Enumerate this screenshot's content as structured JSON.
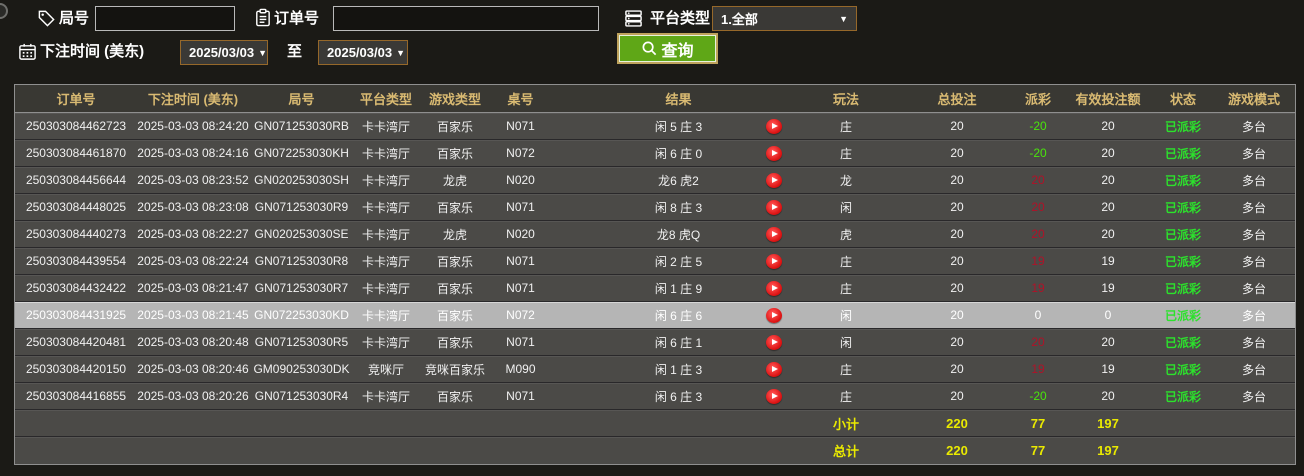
{
  "filters": {
    "round_label": "局号",
    "round_value": "",
    "order_label": "订单号",
    "order_value": "",
    "platform_label": "平台类型",
    "platform_value": "1.全部",
    "bet_time_label": "下注时间 (美东)",
    "date_from": "2025/03/03",
    "to_label": "至",
    "date_to": "2025/03/03",
    "search_label": "查询"
  },
  "icons": {
    "round": "tag-icon",
    "order": "clipboard-icon",
    "platform": "server-list-icon",
    "bet_time": "calendar-icon",
    "search": "magnifier-icon",
    "play": "play-circle-icon",
    "dropdown": "▼"
  },
  "colors": {
    "page_bg": "#1b1a16",
    "row_bg": "#4b4a47",
    "header_bg": "#393833",
    "header_text": "#d9ba72",
    "selected_row_bg": "#b5b5b5",
    "payout_negative_green": "#49e40c",
    "payout_positive_red": "#b01228",
    "status_paid_green": "#2ce22c",
    "totals_yellow": "#eaea00",
    "search_button_green": "#5fa717",
    "select_border_brown": "#96682a"
  },
  "table": {
    "columns": [
      "订单号",
      "下注时间 (美东)",
      "局号",
      "平台类型",
      "游戏类型",
      "桌号",
      "结果",
      "",
      "玩法",
      "总投注",
      "派彩",
      "有效投注额",
      "状态",
      "游戏模式"
    ],
    "rows": [
      {
        "order": "250303084462723",
        "time": "2025-03-03 08:24:20",
        "round": "GN071253030RB",
        "platform": "卡卡湾厅",
        "game": "百家乐",
        "table": "N071",
        "result": "闲 5 庄 3",
        "playtype": "庄",
        "bet": "20",
        "payout": "-20",
        "payout_color": "green",
        "valid": "20",
        "status": "已派彩",
        "mode": "多台",
        "selected": false
      },
      {
        "order": "250303084461870",
        "time": "2025-03-03 08:24:16",
        "round": "GN072253030KH",
        "platform": "卡卡湾厅",
        "game": "百家乐",
        "table": "N072",
        "result": "闲 6 庄 0",
        "playtype": "庄",
        "bet": "20",
        "payout": "-20",
        "payout_color": "green",
        "valid": "20",
        "status": "已派彩",
        "mode": "多台",
        "selected": false
      },
      {
        "order": "250303084456644",
        "time": "2025-03-03 08:23:52",
        "round": "GN020253030SH",
        "platform": "卡卡湾厅",
        "game": "龙虎",
        "table": "N020",
        "result": "龙6 虎2",
        "playtype": "龙",
        "bet": "20",
        "payout": "20",
        "payout_color": "red",
        "valid": "20",
        "status": "已派彩",
        "mode": "多台",
        "selected": false
      },
      {
        "order": "250303084448025",
        "time": "2025-03-03 08:23:08",
        "round": "GN071253030R9",
        "platform": "卡卡湾厅",
        "game": "百家乐",
        "table": "N071",
        "result": "闲 8 庄 3",
        "playtype": "闲",
        "bet": "20",
        "payout": "20",
        "payout_color": "red",
        "valid": "20",
        "status": "已派彩",
        "mode": "多台",
        "selected": false
      },
      {
        "order": "250303084440273",
        "time": "2025-03-03 08:22:27",
        "round": "GN020253030SE",
        "platform": "卡卡湾厅",
        "game": "龙虎",
        "table": "N020",
        "result": "龙8 虎Q",
        "playtype": "虎",
        "bet": "20",
        "payout": "20",
        "payout_color": "red",
        "valid": "20",
        "status": "已派彩",
        "mode": "多台",
        "selected": false
      },
      {
        "order": "250303084439554",
        "time": "2025-03-03 08:22:24",
        "round": "GN071253030R8",
        "platform": "卡卡湾厅",
        "game": "百家乐",
        "table": "N071",
        "result": "闲 2 庄 5",
        "playtype": "庄",
        "bet": "20",
        "payout": "19",
        "payout_color": "red",
        "valid": "19",
        "status": "已派彩",
        "mode": "多台",
        "selected": false
      },
      {
        "order": "250303084432422",
        "time": "2025-03-03 08:21:47",
        "round": "GN071253030R7",
        "platform": "卡卡湾厅",
        "game": "百家乐",
        "table": "N071",
        "result": "闲 1 庄 9",
        "playtype": "庄",
        "bet": "20",
        "payout": "19",
        "payout_color": "red",
        "valid": "19",
        "status": "已派彩",
        "mode": "多台",
        "selected": false
      },
      {
        "order": "250303084431925",
        "time": "2025-03-03 08:21:45",
        "round": "GN072253030KD",
        "platform": "卡卡湾厅",
        "game": "百家乐",
        "table": "N072",
        "result": "闲 6 庄 6",
        "playtype": "闲",
        "bet": "20",
        "payout": "0",
        "payout_color": "white",
        "valid": "0",
        "status": "已派彩",
        "mode": "多台",
        "selected": true
      },
      {
        "order": "250303084420481",
        "time": "2025-03-03 08:20:48",
        "round": "GN071253030R5",
        "platform": "卡卡湾厅",
        "game": "百家乐",
        "table": "N071",
        "result": "闲 6 庄 1",
        "playtype": "闲",
        "bet": "20",
        "payout": "20",
        "payout_color": "red",
        "valid": "20",
        "status": "已派彩",
        "mode": "多台",
        "selected": false
      },
      {
        "order": "250303084420150",
        "time": "2025-03-03 08:20:46",
        "round": "GM090253030DK",
        "platform": "竞咪厅",
        "game": "竞咪百家乐",
        "table": "M090",
        "result": "闲 1 庄 3",
        "playtype": "庄",
        "bet": "20",
        "payout": "19",
        "payout_color": "red",
        "valid": "19",
        "status": "已派彩",
        "mode": "多台",
        "selected": false
      },
      {
        "order": "250303084416855",
        "time": "2025-03-03 08:20:26",
        "round": "GN071253030R4",
        "platform": "卡卡湾厅",
        "game": "百家乐",
        "table": "N071",
        "result": "闲 6 庄 3",
        "playtype": "庄",
        "bet": "20",
        "payout": "-20",
        "payout_color": "green",
        "valid": "20",
        "status": "已派彩",
        "mode": "多台",
        "selected": false
      }
    ],
    "totals": [
      {
        "label": "小计",
        "bet": "220",
        "payout": "77",
        "valid": "197"
      },
      {
        "label": "总计",
        "bet": "220",
        "payout": "77",
        "valid": "197"
      }
    ]
  }
}
